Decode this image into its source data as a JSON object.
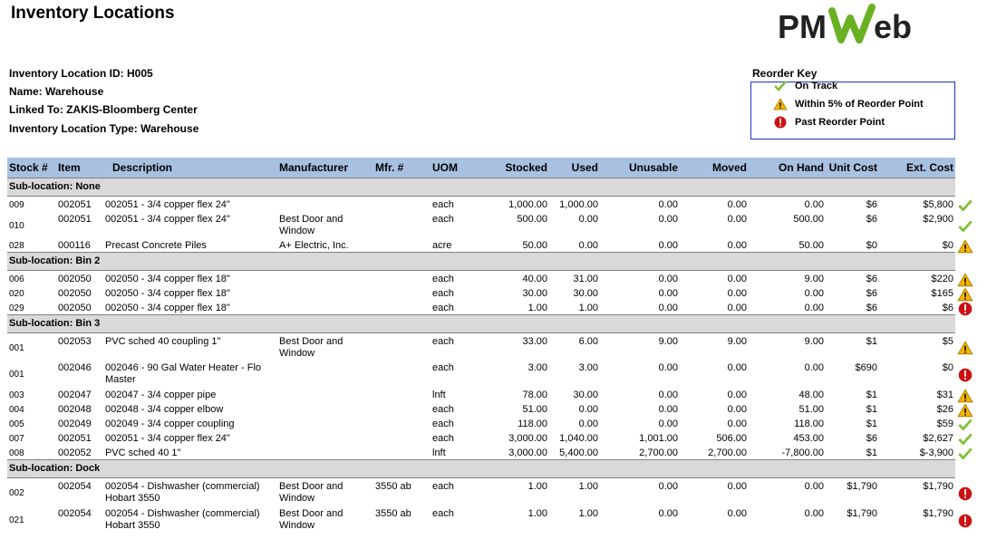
{
  "report": {
    "title": "Inventory Locations",
    "logo_text": "PMWeb",
    "info": {
      "id": "Inventory Location ID: H005",
      "name": "Name: Warehouse",
      "linked": "Linked To: ZAKIS-Bloomberg Center",
      "type": "Inventory Location Type: Warehouse"
    }
  },
  "key": {
    "title": "Reorder Key",
    "items": [
      {
        "label": "On Track",
        "icon": "check-icon"
      },
      {
        "label": "Within 5% of Reorder Point",
        "icon": "warning-icon"
      },
      {
        "label": "Past Reorder Point",
        "icon": "error-icon"
      }
    ]
  },
  "colors": {
    "header_bg": "#a9c1e1",
    "sub_bg": "#d9d9d9",
    "check": "#7cc233",
    "warning": "#f4b400",
    "error": "#cc1010",
    "key_border": "#1f2fd0"
  },
  "table": {
    "headers": [
      "Stock #",
      "Item",
      "Description",
      "Manufacturer",
      "Mfr. #",
      "UOM",
      "Stocked",
      "Used",
      "Unusable",
      "Moved",
      "On Hand",
      "Unit Cost",
      "Ext. Cost"
    ],
    "groups": [
      {
        "label": "Sub-location: None",
        "rows": [
          [
            "009",
            "002051",
            "002051 - 3/4 copper flex 24\"",
            "",
            "",
            "each",
            "1,000.00",
            "1,000.00",
            "0.00",
            "0.00",
            "0.00",
            "$6",
            "$5,800",
            "check"
          ],
          [
            "010",
            "002051",
            "002051 - 3/4 copper flex 24\"",
            "Best Door and Window",
            "",
            "each",
            "500.00",
            "0.00",
            "0.00",
            "0.00",
            "500.00",
            "$6",
            "$2,900",
            "check"
          ],
          [
            "028",
            "000116",
            "Precast Concrete Piles",
            "A+ Electric, Inc.",
            "",
            "acre",
            "50.00",
            "0.00",
            "0.00",
            "0.00",
            "50.00",
            "$0",
            "$0",
            "warning"
          ]
        ]
      },
      {
        "label": "Sub-location: Bin 2",
        "rows": [
          [
            "006",
            "002050",
            "002050 - 3/4 copper flex 18\"",
            "",
            "",
            "each",
            "40.00",
            "31.00",
            "0.00",
            "0.00",
            "9.00",
            "$6",
            "$220",
            "warning"
          ],
          [
            "020",
            "002050",
            "002050 - 3/4 copper flex 18\"",
            "",
            "",
            "each",
            "30.00",
            "30.00",
            "0.00",
            "0.00",
            "0.00",
            "$6",
            "$165",
            "warning"
          ],
          [
            "029",
            "002050",
            "002050 - 3/4 copper flex 18\"",
            "",
            "",
            "each",
            "1.00",
            "1.00",
            "0.00",
            "0.00",
            "0.00",
            "$6",
            "$6",
            "error"
          ]
        ]
      },
      {
        "label": "Sub-location: Bin 3",
        "rows": [
          [
            "001",
            "002053",
            "PVC sched 40 coupling 1\"",
            "Best Door and Window",
            "",
            "each",
            "33.00",
            "6.00",
            "9.00",
            "9.00",
            "9.00",
            "$1",
            "$5",
            "warning"
          ],
          [
            "001",
            "002046",
            "002046 - 90 Gal Water Heater - Flo Master",
            "",
            "",
            "each",
            "3.00",
            "3.00",
            "0.00",
            "0.00",
            "0.00",
            "$690",
            "$0",
            "error"
          ],
          [
            "003",
            "002047",
            "002047 - 3/4 copper pipe",
            "",
            "",
            "lnft",
            "78.00",
            "30.00",
            "0.00",
            "0.00",
            "48.00",
            "$1",
            "$31",
            "warning"
          ],
          [
            "004",
            "002048",
            "002048 - 3/4 copper elbow",
            "",
            "",
            "each",
            "51.00",
            "0.00",
            "0.00",
            "0.00",
            "51.00",
            "$1",
            "$26",
            "warning"
          ],
          [
            "005",
            "002049",
            "002049 - 3/4 copper coupling",
            "",
            "",
            "each",
            "118.00",
            "0.00",
            "0.00",
            "0.00",
            "118.00",
            "$1",
            "$59",
            "check"
          ],
          [
            "007",
            "002051",
            "002051 - 3/4 copper flex 24\"",
            "",
            "",
            "each",
            "3,000.00",
            "1,040.00",
            "1,001.00",
            "506.00",
            "453.00",
            "$6",
            "$2,627",
            "check"
          ],
          [
            "008",
            "002052",
            "PVC sched 40 1\"",
            "",
            "",
            "lnft",
            "3,000.00",
            "5,400.00",
            "2,700.00",
            "2,700.00",
            "-7,800.00",
            "$1",
            "$-3,900",
            "check"
          ]
        ]
      },
      {
        "label": "Sub-location: Dock",
        "rows": [
          [
            "002",
            "002054",
            "002054 - Dishwasher (commercial) Hobart 3550",
            "Best Door and Window",
            "3550 ab",
            "each",
            "1.00",
            "1.00",
            "0.00",
            "0.00",
            "0.00",
            "$1,790",
            "$1,790",
            "error"
          ],
          [
            "021",
            "002054",
            "002054 - Dishwasher (commercial) Hobart 3550",
            "Best Door and Window",
            "3550 ab",
            "each",
            "1.00",
            "1.00",
            "0.00",
            "0.00",
            "0.00",
            "$1,790",
            "$1,790",
            "error"
          ]
        ]
      }
    ]
  }
}
